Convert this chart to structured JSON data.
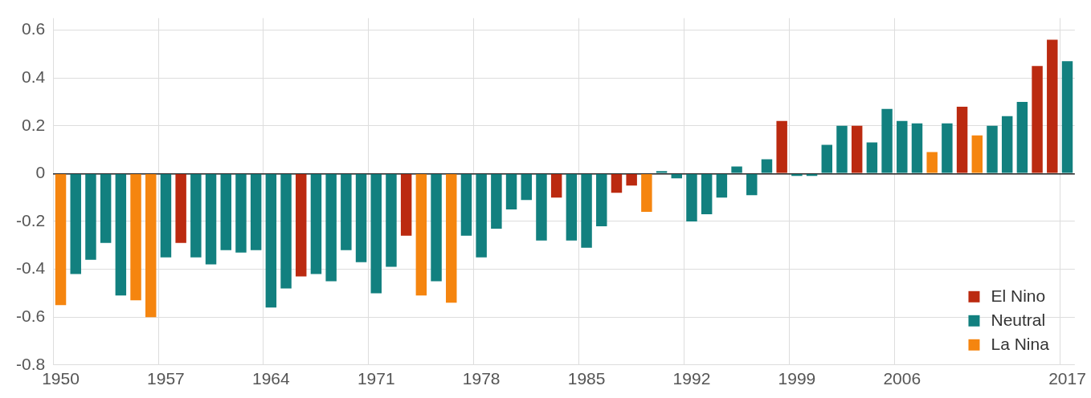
{
  "chart_data": {
    "type": "bar",
    "categories": [
      "1950",
      null,
      null,
      null,
      null,
      null,
      null,
      "1957",
      null,
      null,
      null,
      null,
      null,
      null,
      "1964",
      null,
      null,
      null,
      null,
      null,
      null,
      "1971",
      null,
      null,
      null,
      null,
      null,
      null,
      "1978",
      null,
      null,
      null,
      null,
      null,
      null,
      "1985",
      null,
      null,
      null,
      null,
      null,
      null,
      "1992",
      null,
      null,
      null,
      null,
      null,
      null,
      "1999",
      null,
      null,
      null,
      null,
      null,
      null,
      "2006",
      null,
      null,
      null,
      null,
      null,
      null,
      null,
      null,
      null,
      null,
      "2017"
    ],
    "series": [
      {
        "name": "El Nino",
        "color": "#bb2a10",
        "values": [
          null,
          null,
          null,
          null,
          null,
          null,
          null,
          null,
          -0.29,
          null,
          null,
          null,
          null,
          null,
          null,
          null,
          -0.43,
          null,
          null,
          null,
          null,
          null,
          null,
          -0.26,
          null,
          null,
          null,
          null,
          null,
          null,
          null,
          null,
          null,
          -0.1,
          null,
          null,
          null,
          -0.08,
          -0.05,
          null,
          null,
          null,
          null,
          null,
          null,
          null,
          null,
          null,
          0.22,
          null,
          null,
          null,
          null,
          0.2,
          null,
          null,
          null,
          null,
          null,
          null,
          0.28,
          null,
          null,
          null,
          null,
          0.45,
          0.56,
          null
        ]
      },
      {
        "name": "Neutral",
        "color": "#12807f",
        "values": [
          null,
          -0.42,
          -0.36,
          -0.29,
          -0.51,
          null,
          null,
          -0.35,
          null,
          -0.35,
          -0.38,
          -0.32,
          -0.33,
          -0.32,
          -0.56,
          -0.48,
          null,
          -0.42,
          -0.45,
          -0.32,
          -0.37,
          -0.5,
          -0.39,
          null,
          null,
          -0.45,
          null,
          -0.26,
          -0.35,
          -0.23,
          -0.15,
          -0.11,
          -0.28,
          null,
          -0.28,
          -0.31,
          -0.22,
          null,
          null,
          null,
          0.01,
          -0.02,
          -0.2,
          -0.17,
          -0.1,
          0.03,
          -0.09,
          0.06,
          null,
          -0.01,
          -0.01,
          0.12,
          0.2,
          null,
          0.13,
          0.27,
          0.22,
          0.21,
          null,
          0.21,
          null,
          null,
          0.2,
          0.24,
          0.3,
          null,
          null,
          0.47
        ]
      },
      {
        "name": "La Nina",
        "color": "#f5850f",
        "values": [
          -0.55,
          null,
          null,
          null,
          null,
          -0.53,
          -0.6,
          null,
          null,
          null,
          null,
          null,
          null,
          null,
          null,
          null,
          null,
          null,
          null,
          null,
          null,
          null,
          null,
          null,
          -0.51,
          null,
          -0.54,
          null,
          null,
          null,
          null,
          null,
          null,
          null,
          null,
          null,
          null,
          null,
          null,
          -0.16,
          null,
          null,
          null,
          null,
          null,
          null,
          null,
          null,
          null,
          null,
          null,
          null,
          null,
          null,
          null,
          null,
          null,
          null,
          0.09,
          null,
          null,
          0.16,
          null,
          null,
          null,
          null,
          null,
          null
        ]
      }
    ],
    "ylim": [
      -0.8,
      0.65
    ],
    "yticks": [
      -0.8,
      -0.6,
      -0.4,
      -0.2,
      0,
      0.2,
      0.4,
      0.6
    ],
    "grid": true,
    "legend": "bottom right"
  }
}
